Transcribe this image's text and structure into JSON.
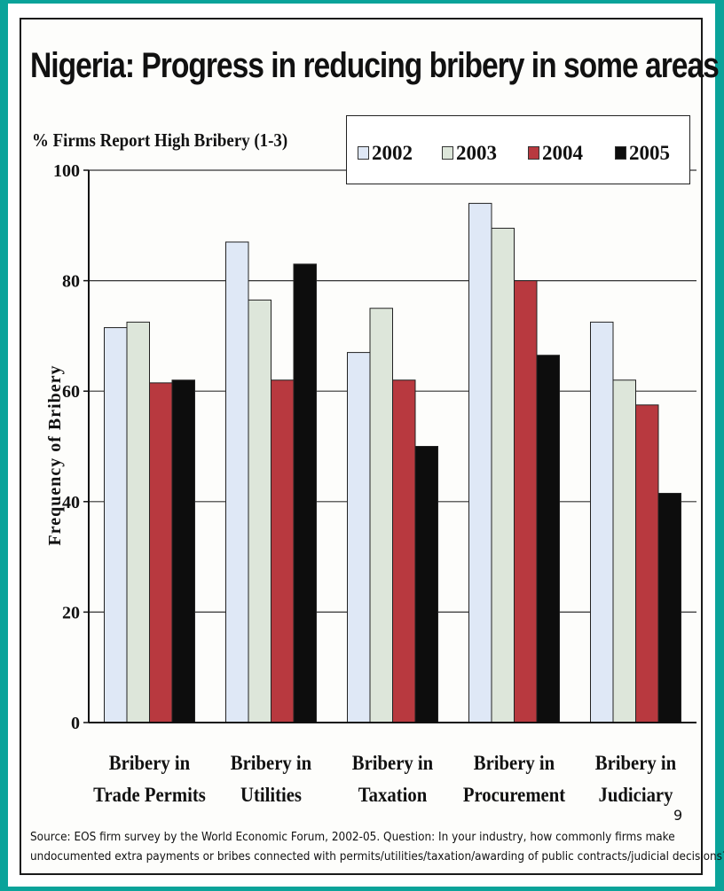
{
  "title": "Nigeria: Progress in reducing bribery in some areas",
  "chart_data": {
    "type": "bar",
    "ylabel_top": "% Firms Report High Bribery (1-3)",
    "ylabel": "Frequency of Bribery",
    "xlabel": "",
    "categories": [
      [
        "Bribery in",
        "Trade Permits"
      ],
      [
        "Bribery in",
        "Utilities"
      ],
      [
        "Bribery in",
        "Taxation"
      ],
      [
        "Bribery in",
        "Procurement"
      ],
      [
        "Bribery in",
        "Judiciary"
      ]
    ],
    "series": [
      {
        "name": "2002",
        "color": "#dfe8f6",
        "values": [
          71.5,
          87,
          67,
          94,
          72.5
        ]
      },
      {
        "name": "2003",
        "color": "#dde6da",
        "values": [
          72.5,
          76.5,
          75,
          89.5,
          62
        ]
      },
      {
        "name": "2004",
        "color": "#b8393f",
        "values": [
          61.5,
          62,
          62,
          80,
          57.5
        ]
      },
      {
        "name": "2005",
        "color": "#0d0d0d",
        "values": [
          62,
          83,
          50,
          66.5,
          41.5
        ]
      }
    ],
    "ylim": [
      0,
      100
    ],
    "yticks": [
      0,
      20,
      40,
      60,
      80,
      100
    ],
    "grid": true,
    "legend": "top-right"
  },
  "source": {
    "line1": "Source:  EOS firm survey by the World Economic Forum, 2002-05.  Question: In your industry, how commonly firms make",
    "line2": "undocumented extra payments or bribes connected with permits/utilities/taxation/awarding of public contracts/judicial decisions?"
  },
  "page_number": "9"
}
